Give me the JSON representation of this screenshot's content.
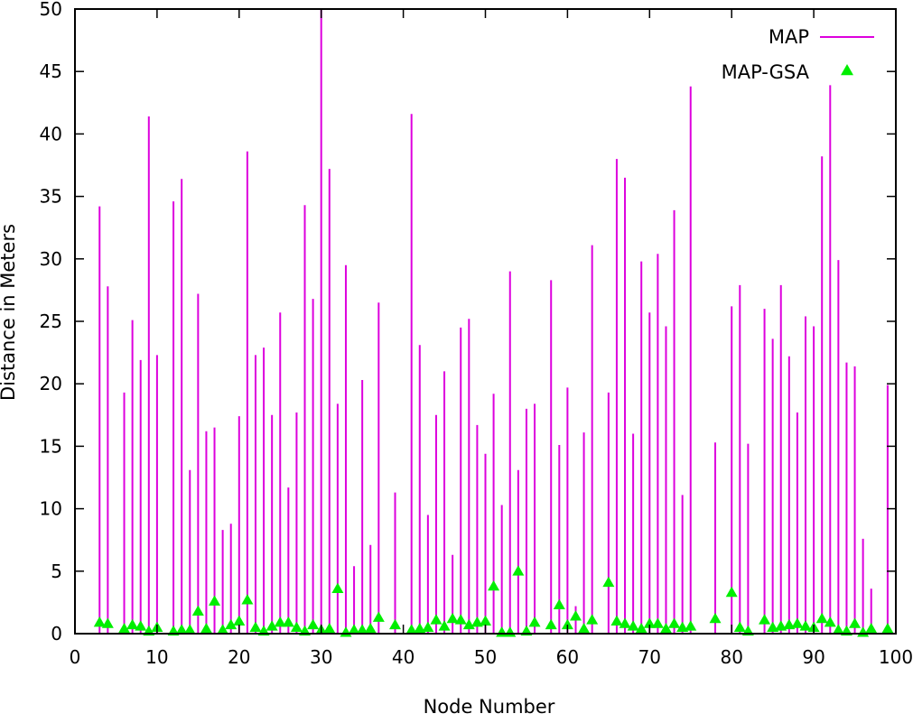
{
  "chart_data": {
    "type": "scatter",
    "title": "",
    "xlabel": "Node Number",
    "ylabel": "Distance in Meters",
    "xlim": [
      0,
      100
    ],
    "ylim": [
      0,
      50
    ],
    "xticks": [
      "0",
      "10",
      "20",
      "30",
      "40",
      "50",
      "60",
      "70",
      "80",
      "90",
      "100"
    ],
    "yticks": [
      "0",
      "5",
      "10",
      "15",
      "20",
      "25",
      "30",
      "35",
      "40",
      "45",
      "50"
    ],
    "grid": false,
    "legend_position": "top-right",
    "series": [
      {
        "name": "MAP",
        "style": "impulses",
        "color": "#dd00dd",
        "x": [
          3,
          4,
          6,
          7,
          8,
          9,
          10,
          12,
          13,
          14,
          15,
          16,
          17,
          18,
          19,
          20,
          21,
          22,
          23,
          24,
          25,
          26,
          27,
          28,
          29,
          30,
          31,
          32,
          33,
          34,
          35,
          36,
          37,
          39,
          41,
          42,
          43,
          44,
          45,
          46,
          47,
          48,
          49,
          50,
          51,
          52,
          53,
          54,
          55,
          56,
          58,
          59,
          60,
          61,
          62,
          63,
          65,
          66,
          67,
          68,
          69,
          70,
          71,
          72,
          73,
          74,
          75,
          78,
          80,
          81,
          82,
          84,
          85,
          86,
          87,
          88,
          89,
          90,
          91,
          92,
          93,
          94,
          95,
          96,
          97,
          99
        ],
        "y": [
          34.2,
          27.8,
          19.3,
          25.1,
          21.9,
          41.4,
          22.3,
          34.6,
          36.4,
          13.1,
          27.2,
          16.2,
          16.5,
          8.3,
          8.8,
          17.4,
          38.6,
          22.3,
          22.9,
          17.5,
          25.7,
          11.7,
          17.7,
          34.3,
          26.8,
          50.0,
          37.2,
          18.4,
          29.5,
          5.4,
          20.3,
          7.1,
          26.5,
          11.3,
          41.6,
          23.1,
          9.5,
          17.5,
          21.0,
          6.3,
          24.5,
          25.2,
          16.7,
          14.4,
          19.2,
          10.3,
          29.0,
          13.1,
          18.0,
          18.4,
          28.3,
          15.1,
          19.7,
          2.2,
          16.1,
          31.1,
          19.3,
          38.0,
          36.5,
          16.0,
          29.8,
          25.7,
          30.4,
          24.6,
          33.9,
          11.1,
          43.8,
          15.3,
          26.2,
          27.9,
          15.2,
          26.0,
          23.6,
          27.9,
          22.2,
          17.7,
          25.4,
          24.6,
          38.2,
          43.9,
          29.9,
          21.7,
          21.4,
          7.6,
          3.6,
          19.9
        ]
      },
      {
        "name": "MAP-GSA",
        "style": "points-triangle",
        "color": "#00ee00",
        "x": [
          3,
          4,
          6,
          7,
          8,
          9,
          10,
          12,
          13,
          14,
          15,
          16,
          17,
          18,
          19,
          20,
          21,
          22,
          23,
          24,
          25,
          26,
          27,
          28,
          29,
          30,
          31,
          32,
          33,
          34,
          35,
          36,
          37,
          39,
          41,
          42,
          43,
          44,
          45,
          46,
          47,
          48,
          49,
          50,
          51,
          52,
          53,
          54,
          55,
          56,
          58,
          59,
          60,
          61,
          62,
          63,
          65,
          66,
          67,
          68,
          69,
          70,
          71,
          72,
          73,
          74,
          75,
          78,
          80,
          81,
          82,
          84,
          85,
          86,
          87,
          88,
          89,
          90,
          91,
          92,
          93,
          94,
          95,
          96,
          97,
          99
        ],
        "y": [
          0.9,
          0.8,
          0.4,
          0.7,
          0.6,
          0.2,
          0.5,
          0.2,
          0.3,
          0.3,
          1.8,
          0.4,
          2.6,
          0.3,
          0.7,
          1.0,
          2.7,
          0.5,
          0.2,
          0.6,
          0.9,
          0.9,
          0.5,
          0.2,
          0.7,
          0.3,
          0.4,
          3.6,
          0.1,
          0.3,
          0.3,
          0.4,
          1.3,
          0.7,
          0.3,
          0.4,
          0.5,
          1.1,
          0.6,
          1.2,
          1.1,
          0.7,
          0.9,
          1.0,
          3.8,
          0.1,
          0.1,
          5.0,
          0.2,
          0.9,
          0.7,
          2.3,
          0.7,
          1.4,
          0.4,
          1.1,
          4.1,
          1.0,
          0.8,
          0.6,
          0.4,
          0.8,
          0.8,
          0.4,
          0.8,
          0.5,
          0.6,
          1.2,
          3.3,
          0.5,
          0.2,
          1.1,
          0.5,
          0.6,
          0.7,
          0.8,
          0.6,
          0.5,
          1.2,
          0.9,
          0.3,
          0.2,
          0.8,
          0.1,
          0.4,
          0.4
        ]
      }
    ]
  }
}
